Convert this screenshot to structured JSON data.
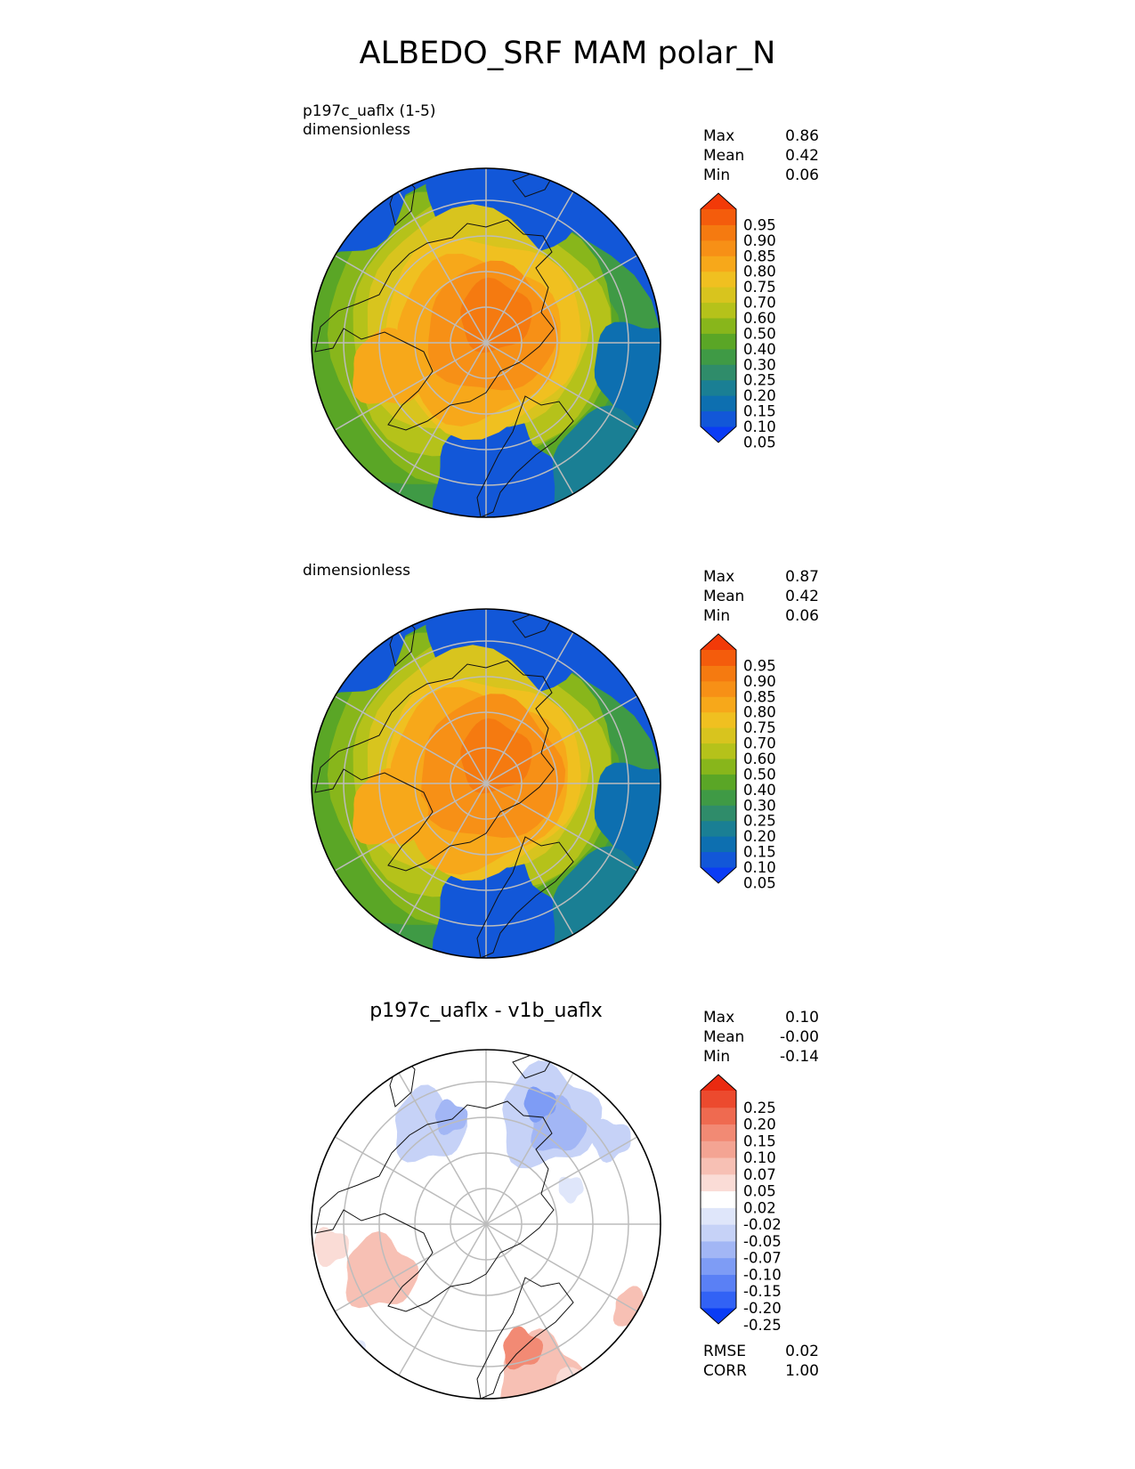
{
  "title": "ALBEDO_SRF MAM polar_N",
  "panels": [
    {
      "id": "test",
      "label_line1": "p197c_uaflx (1-5)",
      "label_line2": "dimensionless",
      "stats": [
        {
          "label": "Max",
          "value": "0.86"
        },
        {
          "label": "Mean",
          "value": "0.42"
        },
        {
          "label": "Min",
          "value": "0.06"
        }
      ],
      "colorbar_ticks": [
        "0.95",
        "0.90",
        "0.85",
        "0.80",
        "0.75",
        "0.70",
        "0.60",
        "0.50",
        "0.40",
        "0.30",
        "0.25",
        "0.20",
        "0.15",
        "0.10",
        "0.05"
      ]
    },
    {
      "id": "ref",
      "label_line1": "",
      "label_line2": "dimensionless",
      "stats": [
        {
          "label": "Max",
          "value": "0.87"
        },
        {
          "label": "Mean",
          "value": "0.42"
        },
        {
          "label": "Min",
          "value": "0.06"
        }
      ],
      "colorbar_ticks": [
        "0.95",
        "0.90",
        "0.85",
        "0.80",
        "0.75",
        "0.70",
        "0.60",
        "0.50",
        "0.40",
        "0.30",
        "0.25",
        "0.20",
        "0.15",
        "0.10",
        "0.05"
      ]
    },
    {
      "id": "diff",
      "title": "p197c_uaflx - v1b_uaflx",
      "stats": [
        {
          "label": "Max",
          "value": "0.10"
        },
        {
          "label": "Mean",
          "value": "-0.00"
        },
        {
          "label": "Min",
          "value": "-0.14"
        }
      ],
      "colorbar_ticks": [
        "0.25",
        "0.20",
        "0.15",
        "0.10",
        "0.07",
        "0.05",
        "0.02",
        "-0.02",
        "-0.05",
        "-0.07",
        "-0.10",
        "-0.15",
        "-0.20",
        "-0.25"
      ],
      "metrics": [
        {
          "label": "RMSE",
          "value": "0.02"
        },
        {
          "label": "CORR",
          "value": "1.00"
        }
      ]
    }
  ],
  "colors": {
    "albedo_palette": [
      "#0a3cf5",
      "#1257d8",
      "#0d6fb0",
      "#1a7f94",
      "#2f8c6a",
      "#3f9a45",
      "#5aa626",
      "#88b61b",
      "#b5c21a",
      "#d8c41e",
      "#f0c020",
      "#f7a81a",
      "#f79016",
      "#f57a10",
      "#f45c0c",
      "#f23a08"
    ],
    "diff_palette": [
      "#0a3cf5",
      "#3262f5",
      "#5a80f5",
      "#7e9cf5",
      "#a2b6f5",
      "#c6d2f7",
      "#dfe6fa",
      "#ffffff",
      "#fadcd6",
      "#f7c0b4",
      "#f4a493",
      "#f28a74",
      "#ef6a50",
      "#ec4a2e",
      "#ea2a10"
    ]
  },
  "chart_data": [
    {
      "type": "heatmap",
      "title": "p197c_uaflx (1-5)",
      "units": "dimensionless",
      "projection": "north polar stereographic",
      "levels": [
        0.05,
        0.1,
        0.15,
        0.2,
        0.25,
        0.3,
        0.4,
        0.5,
        0.6,
        0.7,
        0.75,
        0.8,
        0.85,
        0.9,
        0.95
      ],
      "stats": {
        "max": 0.86,
        "mean": 0.42,
        "min": 0.06
      }
    },
    {
      "type": "heatmap",
      "title": "",
      "units": "dimensionless",
      "projection": "north polar stereographic",
      "levels": [
        0.05,
        0.1,
        0.15,
        0.2,
        0.25,
        0.3,
        0.4,
        0.5,
        0.6,
        0.7,
        0.75,
        0.8,
        0.85,
        0.9,
        0.95
      ],
      "stats": {
        "max": 0.87,
        "mean": 0.42,
        "min": 0.06
      }
    },
    {
      "type": "heatmap",
      "title": "p197c_uaflx - v1b_uaflx",
      "projection": "north polar stereographic",
      "levels": [
        -0.25,
        -0.2,
        -0.15,
        -0.1,
        -0.07,
        -0.05,
        -0.02,
        0.02,
        0.05,
        0.07,
        0.1,
        0.15,
        0.2,
        0.25
      ],
      "stats": {
        "max": 0.1,
        "mean": -0.0,
        "min": -0.14,
        "rmse": 0.02,
        "corr": 1.0
      }
    }
  ]
}
